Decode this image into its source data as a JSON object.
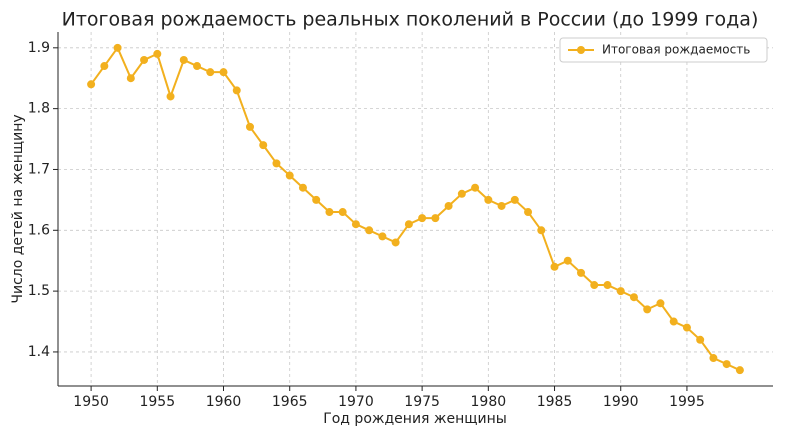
{
  "chart_data": {
    "type": "line",
    "title": "Итоговая рождаемость реальных поколений в России (до 1999 года)",
    "x_label": "Год рождения женщины",
    "y_label": "Число детей на женщину",
    "x": [
      1950,
      1951,
      1952,
      1953,
      1954,
      1955,
      1956,
      1957,
      1958,
      1959,
      1960,
      1961,
      1962,
      1963,
      1964,
      1965,
      1966,
      1967,
      1968,
      1969,
      1970,
      1971,
      1972,
      1973,
      1974,
      1975,
      1976,
      1977,
      1978,
      1979,
      1980,
      1981,
      1982,
      1983,
      1984,
      1985,
      1986,
      1987,
      1988,
      1989,
      1990,
      1991,
      1992,
      1993,
      1994,
      1995,
      1996,
      1997,
      1998,
      1999
    ],
    "series": [
      {
        "name": "Итоговая рождаемость",
        "color": "#f2b01e",
        "values": [
          1.84,
          1.87,
          1.9,
          1.85,
          1.88,
          1.89,
          1.82,
          1.88,
          1.87,
          1.86,
          1.86,
          1.83,
          1.77,
          1.74,
          1.71,
          1.69,
          1.67,
          1.65,
          1.63,
          1.63,
          1.61,
          1.6,
          1.59,
          1.58,
          1.61,
          1.62,
          1.62,
          1.64,
          1.66,
          1.67,
          1.65,
          1.64,
          1.65,
          1.63,
          1.6,
          1.54,
          1.55,
          1.53,
          1.51,
          1.51,
          1.5,
          1.49,
          1.47,
          1.48,
          1.45,
          1.44,
          1.42,
          1.39,
          1.38,
          1.37
        ]
      }
    ],
    "xlim": [
      1947.5,
      2001.5
    ],
    "ylim": [
      1.344,
      1.926
    ],
    "xticks": [
      1950,
      1955,
      1960,
      1965,
      1970,
      1975,
      1980,
      1985,
      1990,
      1995
    ],
    "yticks": [
      1.4,
      1.5,
      1.6,
      1.7,
      1.8,
      1.9
    ],
    "grid": true,
    "legend": "upper right"
  }
}
